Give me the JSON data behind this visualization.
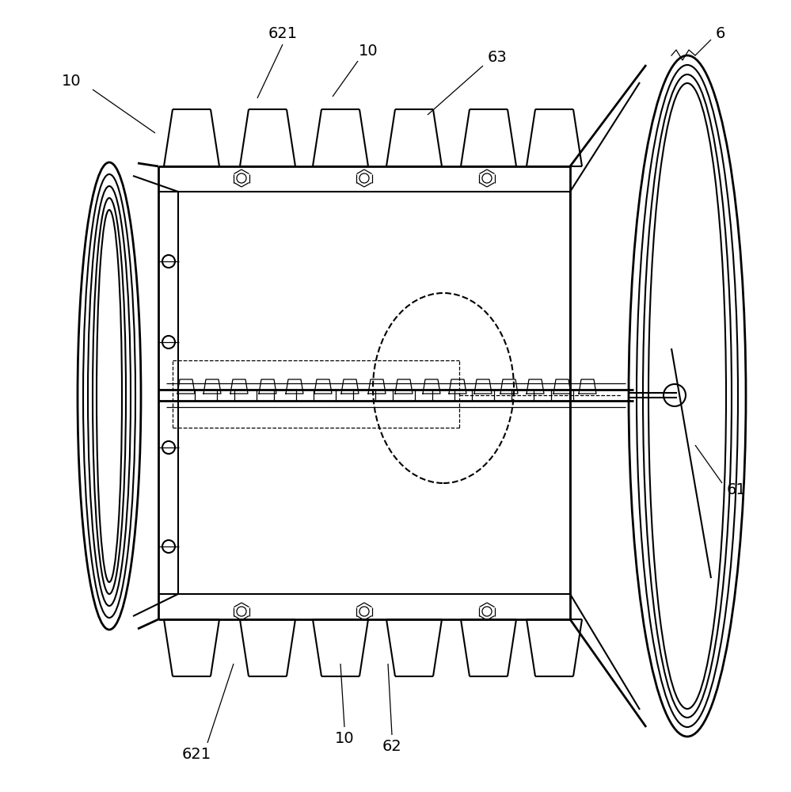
{
  "bg_color": "#ffffff",
  "line_color": "#000000",
  "lw": 1.5,
  "lw_thin": 0.9,
  "lw_thick": 2.0,
  "fig_width": 9.99,
  "fig_height": 10.0,
  "dpi": 100
}
